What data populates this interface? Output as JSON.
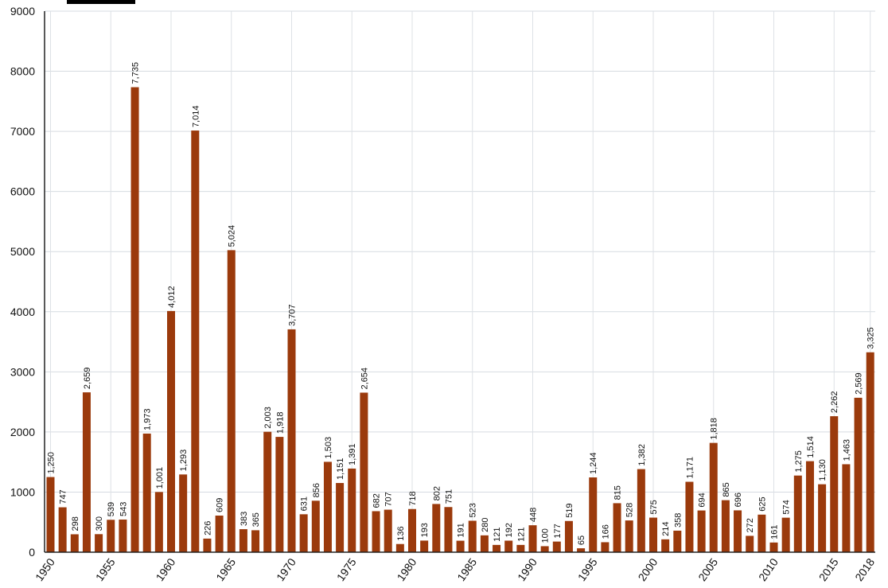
{
  "chart_data": {
    "type": "bar",
    "color": "#9b3a0c",
    "grid": true,
    "ylim": [
      0,
      9000
    ],
    "y_ticks": [
      "0",
      "1000",
      "2000",
      "3000",
      "4000",
      "5000",
      "6000",
      "7000",
      "8000",
      "9000"
    ],
    "x_tick_labels": [
      "1950",
      "1955",
      "1960",
      "1965",
      "1970",
      "1975",
      "1980",
      "1985",
      "1990",
      "1995",
      "2000",
      "2005",
      "2010",
      "2015",
      "2018"
    ],
    "categories": [
      1950,
      1951,
      1952,
      1953,
      1954,
      1955,
      1956,
      1957,
      1958,
      1959,
      1960,
      1961,
      1962,
      1963,
      1964,
      1965,
      1966,
      1967,
      1968,
      1969,
      1970,
      1971,
      1972,
      1973,
      1974,
      1975,
      1976,
      1977,
      1978,
      1979,
      1980,
      1981,
      1982,
      1983,
      1984,
      1985,
      1986,
      1987,
      1988,
      1989,
      1990,
      1991,
      1992,
      1993,
      1994,
      1995,
      1996,
      1997,
      1998,
      1999,
      2000,
      2001,
      2002,
      2003,
      2004,
      2005,
      2006,
      2007,
      2008,
      2009,
      2010,
      2011,
      2012,
      2013,
      2014,
      2015,
      2016,
      2017,
      2018
    ],
    "values": [
      1250,
      747,
      298,
      2659,
      300,
      539,
      543,
      7735,
      1973,
      1001,
      4012,
      1293,
      7014,
      226,
      609,
      5024,
      383,
      365,
      2003,
      1918,
      3707,
      631,
      856,
      1503,
      1151,
      1391,
      2654,
      682,
      707,
      136,
      718,
      193,
      802,
      751,
      191,
      523,
      280,
      121,
      192,
      121,
      448,
      100,
      177,
      519,
      65,
      1244,
      166,
      815,
      528,
      1382,
      575,
      214,
      358,
      1171,
      694,
      1818,
      865,
      696,
      272,
      625,
      161,
      574,
      1275,
      1514,
      1130,
      2262,
      1463,
      2569,
      3325
    ],
    "value_labels": [
      "1,250",
      "747",
      "298",
      "2,659",
      "300",
      "539",
      "543",
      "7,735",
      "1,973",
      "1,001",
      "4,012",
      "1,293",
      "7,014",
      "226",
      "609",
      "5,024",
      "383",
      "365",
      "2,003",
      "1,918",
      "3,707",
      "631",
      "856",
      "1,503",
      "1,151",
      "1,391",
      "2,654",
      "682",
      "707",
      "136",
      "718",
      "193",
      "802",
      "751",
      "191",
      "523",
      "280",
      "121",
      "192",
      "121",
      "448",
      "100",
      "177",
      "519",
      "65",
      "1,244",
      "166",
      "815",
      "528",
      "1,382",
      "575",
      "214",
      "358",
      "1,171",
      "694",
      "1,818",
      "865",
      "696",
      "272",
      "625",
      "161",
      "574",
      "1,275",
      "1,514",
      "1,130",
      "2,262",
      "1,463",
      "2,569",
      "3,325"
    ]
  }
}
